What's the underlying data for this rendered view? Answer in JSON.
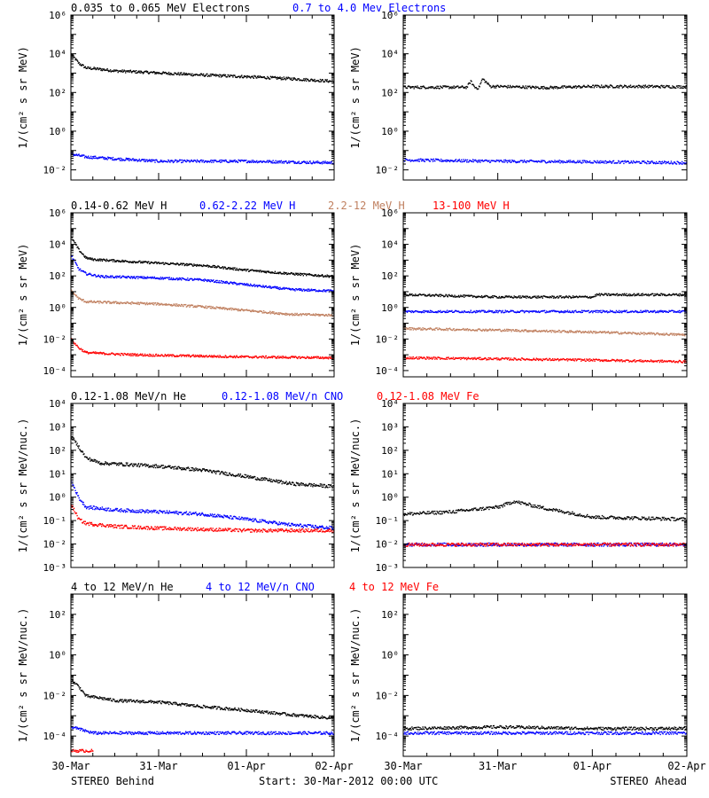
{
  "x_tick_labels": [
    "30-Mar",
    "31-Mar",
    "01-Apr",
    "02-Apr"
  ],
  "x_ticks": [
    "2012-03-30",
    "2012-03-31",
    "2012-04-01",
    "2012-04-02"
  ],
  "footer": {
    "left": "STEREO Behind",
    "center": "Start: 30-Mar-2012 00:00 UTC",
    "right": "STEREO Ahead"
  },
  "rows": [
    {
      "ylabel": "1/(cm² s sr MeV)",
      "legend": [
        {
          "text": "0.035 to 0.065 MeV Electrons",
          "color": "#000000"
        },
        {
          "text": "0.7 to 4.0 Mev Electrons",
          "color": "#0000ff"
        }
      ]
    },
    {
      "ylabel": "1/(cm² s sr MeV)",
      "legend": [
        {
          "text": "0.14-0.62 MeV H",
          "color": "#000000"
        },
        {
          "text": "0.62-2.22 MeV H",
          "color": "#0000ff"
        },
        {
          "text": "2.2-12 MeV H",
          "color": "#c08060"
        },
        {
          "text": "13-100 MeV H",
          "color": "#ff0000"
        }
      ]
    },
    {
      "ylabel": "1/(cm² s sr MeV/nuc.)",
      "legend": [
        {
          "text": "0.12-1.08 MeV/n He",
          "color": "#000000"
        },
        {
          "text": "0.12-1.08 MeV/n CNO",
          "color": "#0000ff"
        },
        {
          "text": "0.12-1.08 MeV Fe",
          "color": "#ff0000"
        }
      ]
    },
    {
      "ylabel": "1/(cm² s sr MeV/nuc.)",
      "legend": [
        {
          "text": "4 to 12 MeV/n He",
          "color": "#000000"
        },
        {
          "text": "4 to 12 MeV/n CNO",
          "color": "#0000ff"
        },
        {
          "text": "4 to 12 MeV Fe",
          "color": "#ff0000"
        }
      ]
    }
  ],
  "chart_data": [
    {
      "type": "scatter",
      "row": 0,
      "spacecraft": "STEREO Behind",
      "ylog": true,
      "ylim": [
        0.003,
        1000000
      ],
      "ytick_exponents": [
        -2,
        0,
        2,
        4,
        6
      ],
      "xlim": [
        "2012-03-30",
        "2012-04-02"
      ],
      "series": [
        {
          "name": "0.035 to 0.065 MeV Electrons",
          "color": "#000000",
          "x": [
            "2012-03-30T00:00",
            "2012-03-30T02:00",
            "2012-03-30T04:00",
            "2012-03-30T08:00",
            "2012-03-30T12:00",
            "2012-03-31T00:00",
            "2012-03-31T12:00",
            "2012-04-01T00:00",
            "2012-04-01T12:00",
            "2012-04-02T00:00"
          ],
          "y": [
            10000,
            3500,
            2000,
            1700,
            1400,
            1100,
            850,
            700,
            550,
            400
          ]
        },
        {
          "name": "0.7 to 4.0 Mev Electrons",
          "color": "#0000ff",
          "x": [
            "2012-03-30T00:00",
            "2012-03-30T04:00",
            "2012-03-30T12:00",
            "2012-03-31T00:00",
            "2012-04-01T00:00",
            "2012-04-02T00:00"
          ],
          "y": [
            0.07,
            0.05,
            0.04,
            0.03,
            0.03,
            0.025
          ]
        }
      ]
    },
    {
      "type": "scatter",
      "row": 0,
      "spacecraft": "STEREO Ahead",
      "ylog": true,
      "ylim": [
        0.003,
        1000000
      ],
      "ytick_exponents": [
        -2,
        0,
        2,
        4,
        6
      ],
      "xlim": [
        "2012-03-30",
        "2012-04-02"
      ],
      "series": [
        {
          "name": "0.035 to 0.065 MeV Electrons",
          "color": "#000000",
          "x": [
            "2012-03-30T00:00",
            "2012-03-30T16:00",
            "2012-03-30T17:00",
            "2012-03-30T18:00",
            "2012-03-30T19:00",
            "2012-03-30T20:00",
            "2012-03-30T22:00",
            "2012-03-31T00:00",
            "2012-03-31T12:00",
            "2012-04-01T00:00",
            "2012-04-01T12:00",
            "2012-04-02T00:00"
          ],
          "y": [
            200,
            200,
            400,
            200,
            180,
            550,
            220,
            220,
            190,
            220,
            220,
            210
          ]
        },
        {
          "name": "0.7 to 4.0 Mev Electrons",
          "color": "#0000ff",
          "x": [
            "2012-03-30T00:00",
            "2012-03-31T00:00",
            "2012-04-01T00:00",
            "2012-04-02T00:00"
          ],
          "y": [
            0.035,
            0.03,
            0.028,
            0.025
          ]
        }
      ]
    },
    {
      "type": "scatter",
      "row": 1,
      "spacecraft": "STEREO Behind",
      "ylog": true,
      "ylim": [
        4e-05,
        1000000
      ],
      "ytick_exponents": [
        -4,
        -2,
        0,
        2,
        4,
        6
      ],
      "xlim": [
        "2012-03-30",
        "2012-04-02"
      ],
      "series": [
        {
          "name": "0.14-0.62 MeV H",
          "color": "#000000",
          "x": [
            "2012-03-30T00:00",
            "2012-03-30T02:00",
            "2012-03-30T04:00",
            "2012-03-30T06:00",
            "2012-03-30T12:00",
            "2012-03-31T00:00",
            "2012-03-31T12:00",
            "2012-04-01T00:00",
            "2012-04-01T12:00",
            "2012-04-02T00:00"
          ],
          "y": [
            30000,
            5000,
            1500,
            1200,
            1000,
            700,
            500,
            250,
            150,
            100
          ]
        },
        {
          "name": "0.62-2.22 MeV H",
          "color": "#0000ff",
          "x": [
            "2012-03-30T00:00",
            "2012-03-30T02:00",
            "2012-03-30T04:00",
            "2012-03-30T08:00",
            "2012-03-31T00:00",
            "2012-03-31T12:00",
            "2012-04-01T00:00",
            "2012-04-01T12:00",
            "2012-04-02T00:00"
          ],
          "y": [
            2000,
            300,
            150,
            100,
            80,
            60,
            30,
            15,
            12
          ]
        },
        {
          "name": "2.2-12 MeV H",
          "color": "#c08060",
          "x": [
            "2012-03-30T00:00",
            "2012-03-30T02:00",
            "2012-03-30T04:00",
            "2012-03-30T12:00",
            "2012-03-31T00:00",
            "2012-03-31T12:00",
            "2012-04-01T00:00",
            "2012-04-01T12:00",
            "2012-04-02T00:00"
          ],
          "y": [
            12,
            4,
            2.5,
            2.2,
            1.8,
            1.2,
            0.7,
            0.4,
            0.35
          ]
        },
        {
          "name": "13-100 MeV H",
          "color": "#ff0000",
          "x": [
            "2012-03-30T00:00",
            "2012-03-30T02:00",
            "2012-03-30T04:00",
            "2012-03-30T12:00",
            "2012-03-31T00:00",
            "2012-04-01T00:00",
            "2012-04-02T00:00"
          ],
          "y": [
            0.01,
            0.003,
            0.0015,
            0.0012,
            0.001,
            0.0008,
            0.0007
          ]
        }
      ]
    },
    {
      "type": "scatter",
      "row": 1,
      "spacecraft": "STEREO Ahead",
      "ylog": true,
      "ylim": [
        4e-05,
        1000000
      ],
      "ytick_exponents": [
        -4,
        -2,
        0,
        2,
        4,
        6
      ],
      "xlim": [
        "2012-03-30",
        "2012-04-02"
      ],
      "series": [
        {
          "name": "0.14-0.62 MeV H",
          "color": "#000000",
          "x": [
            "2012-03-30T00:00",
            "2012-03-31T00:00",
            "2012-04-01T00:00",
            "2012-04-01T01:00",
            "2012-04-02T00:00"
          ],
          "y": [
            7,
            5,
            5,
            7,
            7
          ]
        },
        {
          "name": "0.62-2.22 MeV H",
          "color": "#0000ff",
          "x": [
            "2012-03-30T00:00",
            "2012-03-31T00:00",
            "2012-04-01T00:00",
            "2012-04-02T00:00"
          ],
          "y": [
            0.6,
            0.6,
            0.6,
            0.6
          ]
        },
        {
          "name": "2.2-12 MeV H",
          "color": "#c08060",
          "x": [
            "2012-03-30T00:00",
            "2012-03-31T00:00",
            "2012-04-01T00:00",
            "2012-04-02T00:00"
          ],
          "y": [
            0.05,
            0.04,
            0.03,
            0.02
          ]
        },
        {
          "name": "13-100 MeV H",
          "color": "#ff0000",
          "x": [
            "2012-03-30T00:00",
            "2012-03-31T00:00",
            "2012-04-01T00:00",
            "2012-04-02T00:00"
          ],
          "y": [
            0.0007,
            0.0006,
            0.0005,
            0.0004
          ]
        }
      ]
    },
    {
      "type": "scatter",
      "row": 2,
      "spacecraft": "STEREO Behind",
      "ylog": true,
      "ylim": [
        0.001,
        10000
      ],
      "ytick_exponents": [
        -3,
        -2,
        -1,
        0,
        1,
        2,
        3,
        4
      ],
      "xlim": [
        "2012-03-30",
        "2012-04-02"
      ],
      "series": [
        {
          "name": "0.12-1.08 MeV/n He",
          "color": "#000000",
          "x": [
            "2012-03-30T00:00",
            "2012-03-30T02:00",
            "2012-03-30T04:00",
            "2012-03-30T08:00",
            "2012-03-30T12:00",
            "2012-03-31T00:00",
            "2012-03-31T12:00",
            "2012-04-01T00:00",
            "2012-04-01T12:00",
            "2012-04-02T00:00"
          ],
          "y": [
            400,
            150,
            50,
            30,
            28,
            22,
            15,
            8,
            4,
            3
          ]
        },
        {
          "name": "0.12-1.08 MeV/n CNO",
          "color": "#0000ff",
          "x": [
            "2012-03-30T00:00",
            "2012-03-30T02:00",
            "2012-03-30T04:00",
            "2012-03-30T12:00",
            "2012-03-31T00:00",
            "2012-03-31T12:00",
            "2012-04-01T00:00",
            "2012-04-01T12:00",
            "2012-04-02T00:00"
          ],
          "y": [
            5,
            1,
            0.4,
            0.3,
            0.25,
            0.2,
            0.12,
            0.07,
            0.05
          ]
        },
        {
          "name": "0.12-1.08 MeV Fe",
          "color": "#ff0000",
          "x": [
            "2012-03-30T00:00",
            "2012-03-30T02:00",
            "2012-03-30T04:00",
            "2012-03-30T12:00",
            "2012-03-31T00:00",
            "2012-04-01T00:00",
            "2012-04-02T00:00"
          ],
          "y": [
            0.5,
            0.12,
            0.08,
            0.06,
            0.05,
            0.04,
            0.04
          ]
        }
      ]
    },
    {
      "type": "scatter",
      "row": 2,
      "spacecraft": "STEREO Ahead",
      "ylog": true,
      "ylim": [
        0.001,
        10000
      ],
      "ytick_exponents": [
        -3,
        -2,
        -1,
        0,
        1,
        2,
        3,
        4
      ],
      "xlim": [
        "2012-03-30",
        "2012-04-02"
      ],
      "series": [
        {
          "name": "0.12-1.08 MeV/n He",
          "color": "#000000",
          "x": [
            "2012-03-30T00:00",
            "2012-03-30T12:00",
            "2012-03-31T00:00",
            "2012-03-31T04:00",
            "2012-03-31T12:00",
            "2012-04-01T00:00",
            "2012-04-02T00:00"
          ],
          "y": [
            0.2,
            0.25,
            0.4,
            0.7,
            0.35,
            0.15,
            0.12
          ]
        },
        {
          "name": "0.12-1.08 MeV/n CNO",
          "color": "#0000ff",
          "x": [
            "2012-03-30T00:00",
            "2012-03-31T00:00",
            "2012-04-01T00:00",
            "2012-04-02T00:00"
          ],
          "y": [
            0.01,
            0.01,
            0.01,
            0.01
          ]
        },
        {
          "name": "0.12-1.08 MeV Fe",
          "color": "#ff0000",
          "x": [
            "2012-03-30T00:00",
            "2012-03-31T00:00",
            "2012-04-01T00:00",
            "2012-04-02T00:00"
          ],
          "y": [
            0.01,
            0.01,
            0.01,
            0.01
          ]
        }
      ]
    },
    {
      "type": "scatter",
      "row": 3,
      "spacecraft": "STEREO Behind",
      "ylog": true,
      "ylim": [
        1e-05,
        1000
      ],
      "ytick_exponents": [
        -4,
        -2,
        0,
        2
      ],
      "xlim": [
        "2012-03-30",
        "2012-04-02"
      ],
      "series": [
        {
          "name": "4 to 12 MeV/n He",
          "color": "#000000",
          "x": [
            "2012-03-30T00:00",
            "2012-03-30T02:00",
            "2012-03-30T04:00",
            "2012-03-30T08:00",
            "2012-03-30T12:00",
            "2012-03-31T00:00",
            "2012-03-31T12:00",
            "2012-04-01T00:00",
            "2012-04-01T12:00",
            "2012-04-02T00:00"
          ],
          "y": [
            0.06,
            0.03,
            0.01,
            0.008,
            0.006,
            0.005,
            0.003,
            0.002,
            0.0012,
            0.0008
          ]
        },
        {
          "name": "4 to 12 MeV/n CNO",
          "color": "#0000ff",
          "x": [
            "2012-03-30T00:00",
            "2012-03-30T06:00",
            "2012-03-31T00:00",
            "2012-04-01T00:00",
            "2012-04-02T00:00"
          ],
          "y": [
            0.0003,
            0.00015,
            0.00015,
            0.00015,
            0.00015
          ]
        },
        {
          "name": "4 to 12 MeV Fe",
          "color": "#ff0000",
          "x": [
            "2012-03-30T00:00",
            "2012-03-30T06:00"
          ],
          "y": [
            2e-05,
            2e-05
          ]
        }
      ]
    },
    {
      "type": "scatter",
      "row": 3,
      "spacecraft": "STEREO Ahead",
      "ylog": true,
      "ylim": [
        1e-05,
        1000
      ],
      "ytick_exponents": [
        -4,
        -2,
        0,
        2
      ],
      "xlim": [
        "2012-03-30",
        "2012-04-02"
      ],
      "series": [
        {
          "name": "4 to 12 MeV/n He",
          "color": "#000000",
          "x": [
            "2012-03-30T00:00",
            "2012-03-31T00:00",
            "2012-04-01T00:00",
            "2012-04-02T00:00"
          ],
          "y": [
            0.00025,
            0.0003,
            0.00025,
            0.00025
          ]
        },
        {
          "name": "4 to 12 MeV/n CNO",
          "color": "#0000ff",
          "x": [
            "2012-03-30T00:00",
            "2012-04-02T00:00"
          ],
          "y": [
            0.00015,
            0.00015
          ]
        }
      ]
    }
  ]
}
